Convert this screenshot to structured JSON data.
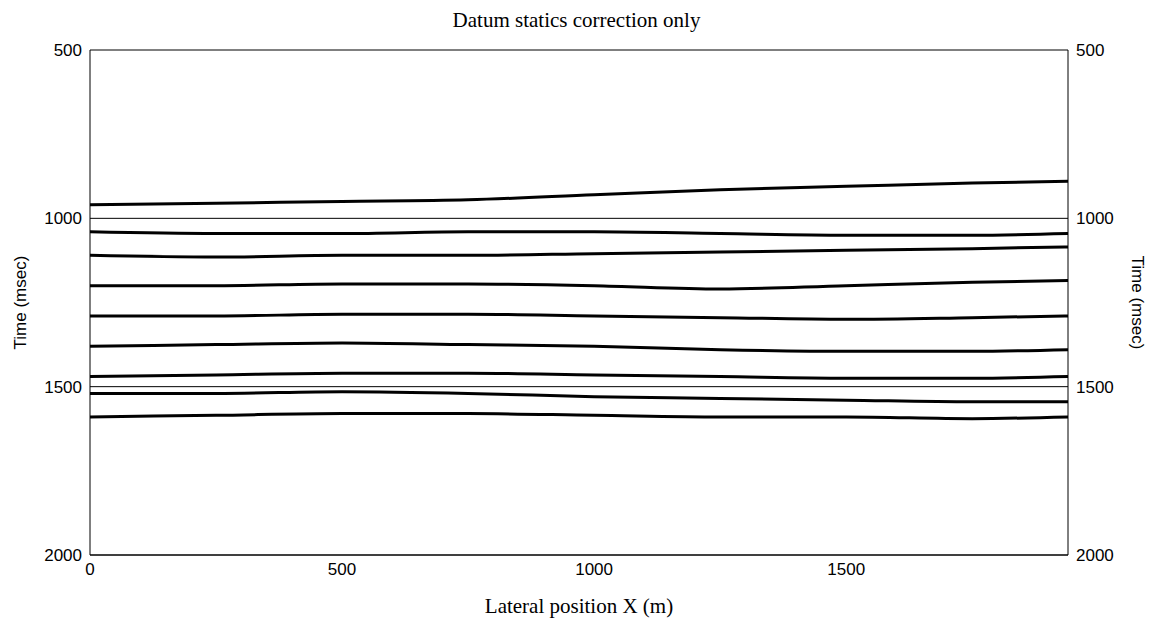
{
  "chart_data": {
    "type": "line",
    "title": "Datum statics correction only",
    "x_label": "Lateral position X (m)",
    "y_label": "Time (msec)",
    "x": [
      0,
      250,
      500,
      750,
      1000,
      1250,
      1500,
      1750,
      1940
    ],
    "series": [
      {
        "color": "#000000",
        "values": [
          960,
          955,
          950,
          945,
          930,
          915,
          905,
          895,
          890
        ]
      },
      {
        "color": "#000000",
        "values": [
          1040,
          1045,
          1045,
          1040,
          1040,
          1045,
          1050,
          1050,
          1045
        ]
      },
      {
        "color": "#000000",
        "values": [
          1110,
          1115,
          1110,
          1110,
          1105,
          1100,
          1095,
          1090,
          1085
        ]
      },
      {
        "color": "#000000",
        "values": [
          1200,
          1200,
          1195,
          1195,
          1200,
          1210,
          1200,
          1190,
          1185
        ]
      },
      {
        "color": "#000000",
        "values": [
          1290,
          1290,
          1285,
          1285,
          1290,
          1295,
          1300,
          1295,
          1290
        ]
      },
      {
        "color": "#000000",
        "values": [
          1380,
          1375,
          1370,
          1375,
          1380,
          1390,
          1395,
          1395,
          1390
        ]
      },
      {
        "color": "#000000",
        "values": [
          1470,
          1465,
          1460,
          1460,
          1465,
          1470,
          1475,
          1475,
          1470
        ]
      },
      {
        "color": "#000000",
        "values": [
          1520,
          1520,
          1515,
          1520,
          1530,
          1535,
          1540,
          1545,
          1545
        ]
      },
      {
        "color": "#000000",
        "values": [
          1590,
          1585,
          1580,
          1580,
          1585,
          1590,
          1590,
          1595,
          1590
        ]
      }
    ],
    "xlim": [
      0,
      1940
    ],
    "xticks": [
      0,
      500,
      1000,
      1500
    ],
    "ylim": [
      500,
      2000
    ],
    "yticks": [
      500,
      1000,
      1500,
      2000
    ],
    "grid": true
  }
}
